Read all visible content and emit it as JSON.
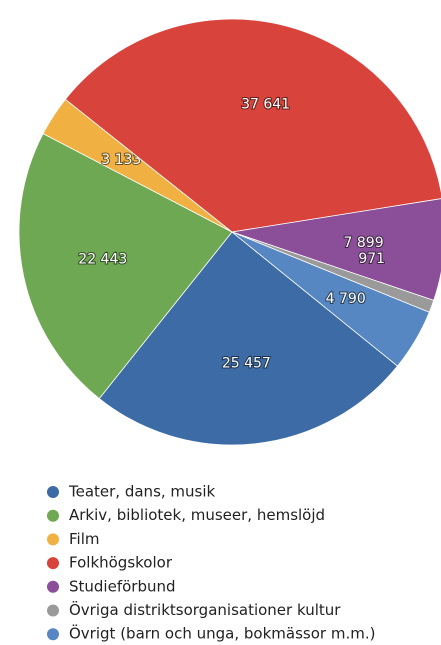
{
  "chart_data": {
    "type": "pie",
    "categories": [
      "Teater, dans, musik",
      "Arkiv, bibliotek, museer, hemslöjd",
      "Film",
      "Folkhögskolor",
      "Studieförbund",
      "Övriga distriktsorganisationer kultur",
      "Övrigt (barn och unga, bokmässor m.m.)"
    ],
    "values": [
      25457,
      22443,
      3133,
      37641,
      7899,
      971,
      4790
    ],
    "value_labels": [
      "25 457",
      "22 443",
      "3 133",
      "37 641",
      "7 899",
      "971",
      "4 790"
    ],
    "colors": [
      "#3d6ba6",
      "#6ea853",
      "#f0b142",
      "#d8433c",
      "#8a4f98",
      "#9a9a9a",
      "#5687c2"
    ],
    "legend": "bottom"
  }
}
